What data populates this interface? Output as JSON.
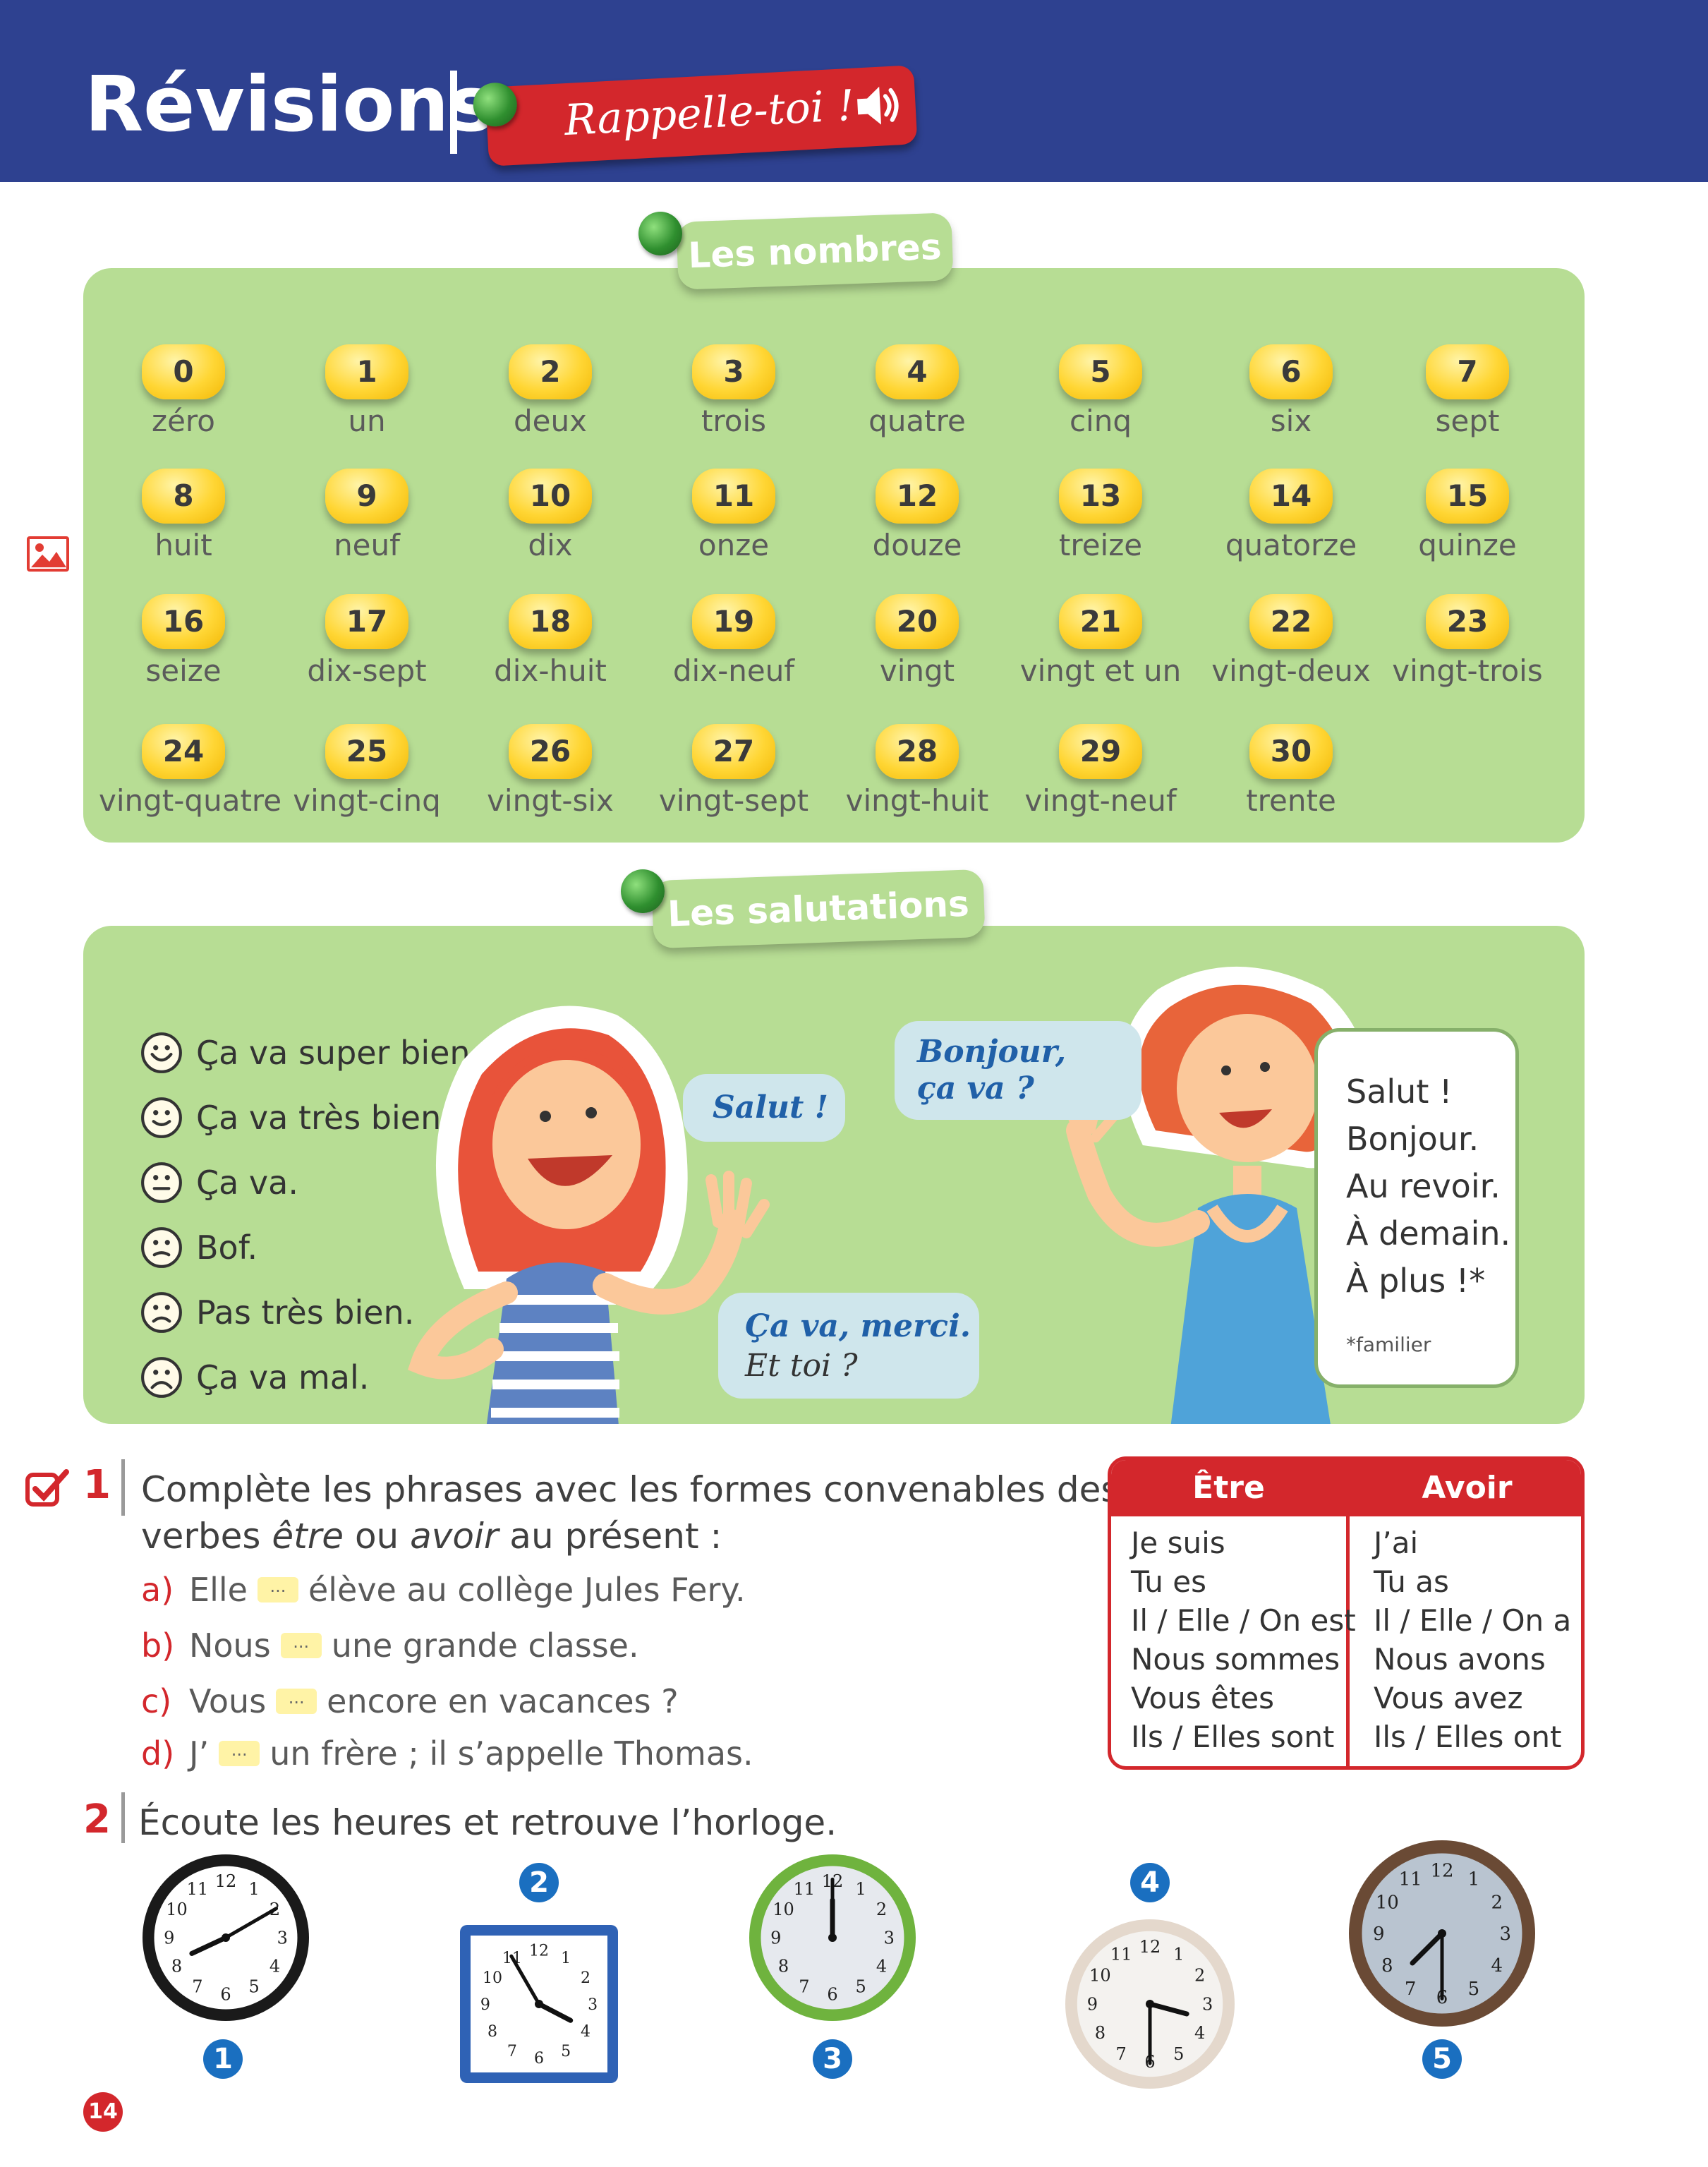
{
  "header": {
    "title": "Révisions",
    "badge_label": "Rappelle-toi !"
  },
  "numbers": {
    "tab_label": "Les nombres",
    "items": [
      {
        "n": "0",
        "w": "zéro"
      },
      {
        "n": "1",
        "w": "un"
      },
      {
        "n": "2",
        "w": "deux"
      },
      {
        "n": "3",
        "w": "trois"
      },
      {
        "n": "4",
        "w": "quatre"
      },
      {
        "n": "5",
        "w": "cinq"
      },
      {
        "n": "6",
        "w": "six"
      },
      {
        "n": "7",
        "w": "sept"
      },
      {
        "n": "8",
        "w": "huit"
      },
      {
        "n": "9",
        "w": "neuf"
      },
      {
        "n": "10",
        "w": "dix"
      },
      {
        "n": "11",
        "w": "onze"
      },
      {
        "n": "12",
        "w": "douze"
      },
      {
        "n": "13",
        "w": "treize"
      },
      {
        "n": "14",
        "w": "quatorze"
      },
      {
        "n": "15",
        "w": "quinze"
      },
      {
        "n": "16",
        "w": "seize"
      },
      {
        "n": "17",
        "w": "dix-sept"
      },
      {
        "n": "18",
        "w": "dix-huit"
      },
      {
        "n": "19",
        "w": "dix-neuf"
      },
      {
        "n": "20",
        "w": "vingt"
      },
      {
        "n": "21",
        "w": "vingt et un"
      },
      {
        "n": "22",
        "w": "vingt-deux"
      },
      {
        "n": "23",
        "w": "vingt-trois"
      },
      {
        "n": "24",
        "w": "vingt-quatre"
      },
      {
        "n": "25",
        "w": "vingt-cinq"
      },
      {
        "n": "26",
        "w": "vingt-six"
      },
      {
        "n": "27",
        "w": "vingt-sept"
      },
      {
        "n": "28",
        "w": "vingt-huit"
      },
      {
        "n": "29",
        "w": "vingt-neuf"
      },
      {
        "n": "30",
        "w": "trente"
      }
    ]
  },
  "greetings": {
    "tab_label": "Les salutations",
    "moods": [
      {
        "label": "Ça va super bien !",
        "mood": "very-happy"
      },
      {
        "label": "Ça va très bien !",
        "mood": "happy"
      },
      {
        "label": "Ça va.",
        "mood": "neutral"
      },
      {
        "label": "Bof.",
        "mood": "unsure"
      },
      {
        "label": "Pas très bien.",
        "mood": "sad"
      },
      {
        "label": "Ça va mal.",
        "mood": "very-sad"
      }
    ],
    "bubbles": {
      "salut": "Salut !",
      "bonjour_1": "Bonjour,",
      "bonjour_2": "ça va ?",
      "cava_1": "Ça va, merci.",
      "cava_2": "Et toi ?"
    },
    "box_lines": [
      "Salut !",
      "Bonjour.",
      "Au revoir.",
      "À demain.",
      "À plus !*"
    ],
    "box_note": "*familier"
  },
  "exercise1": {
    "number": "1",
    "text_line1": "Complète les phrases avec les formes convenables des",
    "text_line2": {
      "a": "verbes ",
      "b": "être",
      "c": " ou ",
      "d": "avoir",
      "e": " au présent :"
    },
    "blank": "...",
    "sentences": [
      {
        "letter": "a)",
        "before": "Elle",
        "after": "élève au collège Jules Fery."
      },
      {
        "letter": "b)",
        "before": "Nous",
        "after": "une grande classe."
      },
      {
        "letter": "c)",
        "before": "Vous",
        "after": "encore en vacances ?"
      },
      {
        "letter": "d)",
        "before": "J’",
        "after": "un frère ; il s’appelle Thomas."
      }
    ]
  },
  "verb_table": {
    "headers": [
      "Être",
      "Avoir"
    ],
    "etre": [
      "Je suis",
      "Tu es",
      "Il / Elle / On est",
      "Nous sommes",
      "Vous êtes",
      "Ils / Elles sont"
    ],
    "avoir": [
      "J’ai",
      "Tu as",
      "Il / Elle / On a",
      "Nous avons",
      "Vous avez",
      "Ils / Elles ont"
    ]
  },
  "exercise2": {
    "number": "2",
    "text": "Écoute les heures et retrouve l’horloge.",
    "clocks": [
      {
        "label": "1",
        "time": "8:10",
        "style": "round-black"
      },
      {
        "label": "2",
        "time": "3:55",
        "style": "square-blue"
      },
      {
        "label": "3",
        "time": "12:00",
        "style": "round-green"
      },
      {
        "label": "4",
        "time": "3:30",
        "style": "round-beige"
      },
      {
        "label": "5",
        "time": "7:30",
        "style": "round-brown"
      }
    ],
    "clock_numerals": [
      "12",
      "1",
      "2",
      "3",
      "4",
      "5",
      "6",
      "7",
      "8",
      "9",
      "10",
      "11"
    ]
  },
  "page_number": "14",
  "colors": {
    "header_blue": "#2e4190",
    "accent_red": "#d3272c",
    "panel_green": "#b7dd94",
    "pill_yellow": "#ffd634",
    "badge_blue": "#1a6fc0"
  }
}
